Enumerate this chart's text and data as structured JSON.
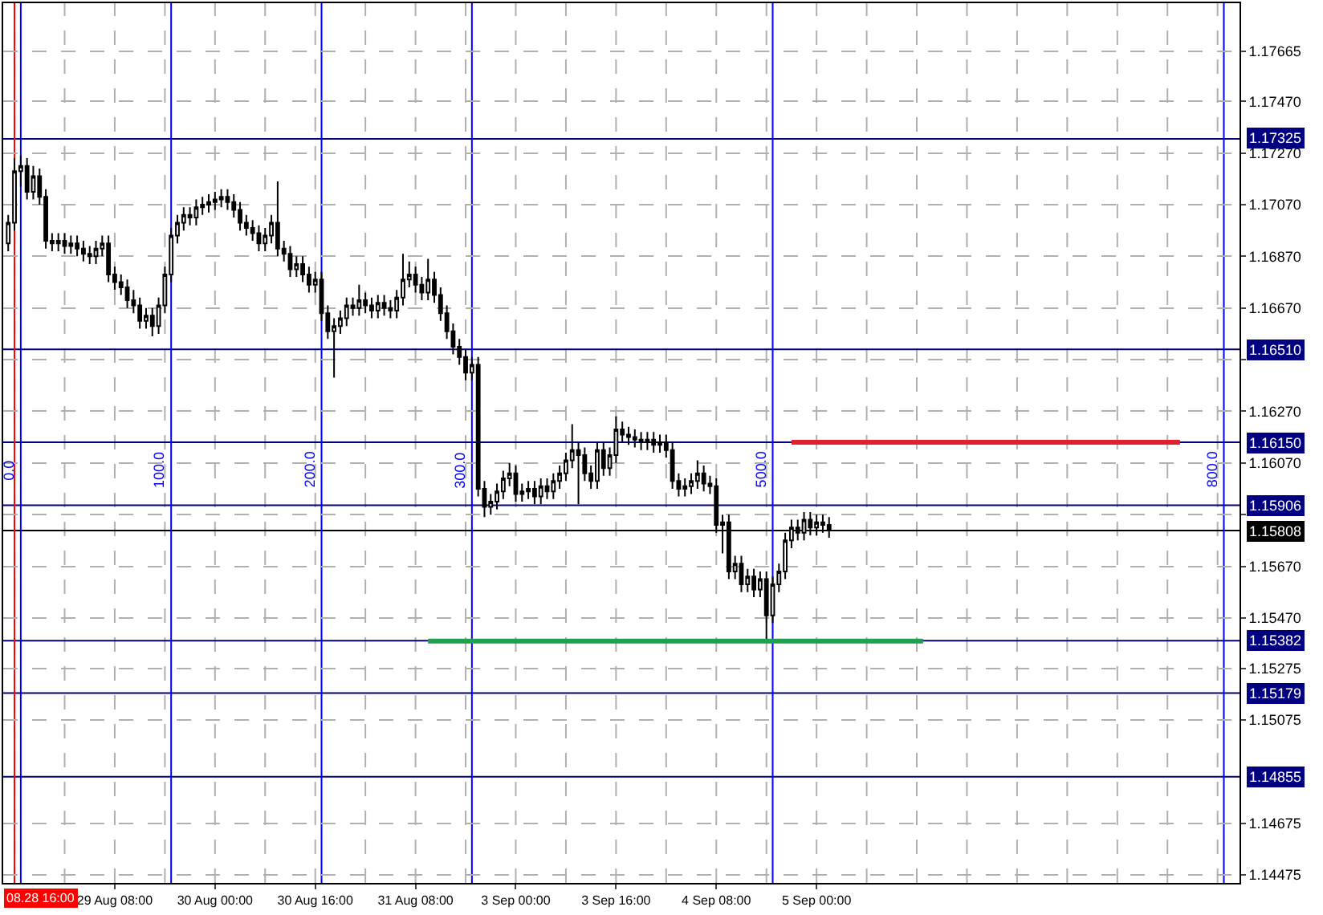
{
  "chart_data": {
    "type": "candlestick",
    "categories": [
      null,
      null,
      null,
      null,
      null,
      null,
      null,
      null,
      null,
      null,
      null,
      null,
      null,
      null,
      null,
      null,
      null,
      "29 Aug 08:00",
      null,
      null,
      null,
      null,
      null,
      null,
      null,
      null,
      null,
      null,
      null,
      null,
      null,
      null,
      null,
      "30 Aug 00:00",
      null,
      null,
      null,
      null,
      null,
      null,
      null,
      null,
      null,
      null,
      null,
      null,
      null,
      null,
      null,
      "30 Aug 16:00",
      null,
      null,
      null,
      null,
      null,
      null,
      null,
      null,
      null,
      null,
      null,
      null,
      null,
      null,
      null,
      "31 Aug 08:00",
      null,
      null,
      null,
      null,
      null,
      null,
      null,
      null,
      null,
      null,
      null,
      null,
      null,
      null,
      null,
      "3 Sep 00:00",
      null,
      null,
      null,
      null,
      null,
      null,
      null,
      null,
      null,
      null,
      null,
      null,
      null,
      null,
      null,
      "3 Sep 16:00",
      null,
      null,
      null,
      null,
      null,
      null,
      null,
      null,
      null,
      null,
      null,
      null,
      null,
      null,
      null,
      "4 Sep 08:00",
      null,
      null,
      null,
      null,
      null,
      null,
      null,
      null,
      null,
      null,
      null,
      null,
      null,
      null,
      null,
      "5 Sep 00:00",
      null,
      null,
      null,
      null,
      null,
      null,
      null,
      null,
      null,
      null,
      null,
      null,
      null,
      null,
      null,
      null,
      null,
      null,
      null,
      null,
      null,
      null,
      null,
      null,
      null,
      null,
      null,
      null,
      null,
      null,
      null,
      null,
      null,
      null,
      null,
      null,
      null,
      null,
      null,
      null,
      null,
      null,
      null,
      null,
      null,
      null,
      null,
      null,
      null,
      null,
      null,
      null,
      null,
      null,
      null,
      null,
      null,
      null,
      null,
      null,
      null,
      null,
      null,
      null,
      null,
      null,
      null
    ],
    "ohlc": [
      [
        1.1692,
        1.1703,
        1.1689,
        1.17
      ],
      [
        1.17,
        1.1725,
        1.1697,
        1.172
      ],
      [
        1.172,
        1.1726,
        1.1714,
        1.1722
      ],
      [
        1.1722,
        1.1725,
        1.1709,
        1.1712
      ],
      [
        1.1712,
        1.1722,
        1.1709,
        1.1718
      ],
      [
        1.1718,
        1.1721,
        1.1707,
        1.171
      ],
      [
        1.171,
        1.1713,
        1.169,
        1.1693
      ],
      [
        1.1693,
        1.1696,
        1.1689,
        1.1692
      ],
      [
        1.1692,
        1.1696,
        1.1689,
        1.1693
      ],
      [
        1.1693,
        1.1696,
        1.1688,
        1.1691
      ],
      [
        1.1691,
        1.1695,
        1.1688,
        1.1692
      ],
      [
        1.1692,
        1.1695,
        1.1687,
        1.169
      ],
      [
        1.169,
        1.1693,
        1.1685,
        1.1688
      ],
      [
        1.1688,
        1.1691,
        1.1684,
        1.1687
      ],
      [
        1.1687,
        1.1693,
        1.1684,
        1.169
      ],
      [
        1.169,
        1.1695,
        1.1687,
        1.1692
      ],
      [
        1.1692,
        1.1695,
        1.1677,
        1.168
      ],
      [
        1.168,
        1.1683,
        1.1674,
        1.1677
      ],
      [
        1.1677,
        1.168,
        1.1672,
        1.1675
      ],
      [
        1.1675,
        1.1678,
        1.1667,
        1.167
      ],
      [
        1.167,
        1.1674,
        1.1665,
        1.1668
      ],
      [
        1.1668,
        1.1671,
        1.1659,
        1.1662
      ],
      [
        1.1662,
        1.1667,
        1.1659,
        1.1664
      ],
      [
        1.1664,
        1.1667,
        1.1656,
        1.166
      ],
      [
        1.166,
        1.1671,
        1.1657,
        1.1668
      ],
      [
        1.1668,
        1.1683,
        1.1665,
        1.168
      ],
      [
        1.168,
        1.1698,
        1.1677,
        1.1695
      ],
      [
        1.1695,
        1.1703,
        1.1692,
        1.17
      ],
      [
        1.17,
        1.1706,
        1.1697,
        1.1703
      ],
      [
        1.1703,
        1.1706,
        1.1699,
        1.1702
      ],
      [
        1.1702,
        1.1709,
        1.1699,
        1.1706
      ],
      [
        1.1706,
        1.171,
        1.1703,
        1.1707
      ],
      [
        1.1707,
        1.1711,
        1.1704,
        1.1708
      ],
      [
        1.1708,
        1.1712,
        1.1705,
        1.1709
      ],
      [
        1.1709,
        1.1713,
        1.1706,
        1.171
      ],
      [
        1.171,
        1.1713,
        1.1705,
        1.1708
      ],
      [
        1.1708,
        1.1711,
        1.1702,
        1.1705
      ],
      [
        1.1705,
        1.1708,
        1.1697,
        1.17
      ],
      [
        1.17,
        1.1703,
        1.1695,
        1.1698
      ],
      [
        1.1698,
        1.1701,
        1.1693,
        1.1696
      ],
      [
        1.1696,
        1.1699,
        1.1689,
        1.1692
      ],
      [
        1.1692,
        1.1698,
        1.1689,
        1.1695
      ],
      [
        1.1695,
        1.1703,
        1.1692,
        1.17
      ],
      [
        1.17,
        1.1716,
        1.1687,
        1.169
      ],
      [
        1.169,
        1.1693,
        1.1685,
        1.1688
      ],
      [
        1.1688,
        1.1691,
        1.1679,
        1.1682
      ],
      [
        1.1682,
        1.1687,
        1.1679,
        1.1684
      ],
      [
        1.1684,
        1.1687,
        1.1677,
        1.168
      ],
      [
        1.168,
        1.1683,
        1.1673,
        1.1676
      ],
      [
        1.1676,
        1.1681,
        1.1673,
        1.1678
      ],
      [
        1.1678,
        1.1681,
        1.1662,
        1.1665
      ],
      [
        1.1665,
        1.1668,
        1.1655,
        1.1658
      ],
      [
        1.1658,
        1.1663,
        1.164,
        1.166
      ],
      [
        1.166,
        1.1666,
        1.1657,
        1.1663
      ],
      [
        1.1663,
        1.1671,
        1.166,
        1.1668
      ],
      [
        1.1668,
        1.1671,
        1.1664,
        1.1667
      ],
      [
        1.1667,
        1.1676,
        1.1664,
        1.167
      ],
      [
        1.167,
        1.1673,
        1.1665,
        1.1668
      ],
      [
        1.1668,
        1.1671,
        1.1663,
        1.1666
      ],
      [
        1.1666,
        1.1672,
        1.1663,
        1.1669
      ],
      [
        1.1669,
        1.1672,
        1.1664,
        1.1667
      ],
      [
        1.1667,
        1.167,
        1.1663,
        1.1666
      ],
      [
        1.1666,
        1.1674,
        1.1663,
        1.1671
      ],
      [
        1.1671,
        1.1688,
        1.1668,
        1.1678
      ],
      [
        1.1678,
        1.1685,
        1.1675,
        1.168
      ],
      [
        1.168,
        1.1683,
        1.1673,
        1.1676
      ],
      [
        1.1676,
        1.1679,
        1.167,
        1.1673
      ],
      [
        1.1673,
        1.1686,
        1.167,
        1.1678
      ],
      [
        1.1678,
        1.1681,
        1.1669,
        1.1672
      ],
      [
        1.1672,
        1.1675,
        1.1662,
        1.1665
      ],
      [
        1.1665,
        1.1668,
        1.1655,
        1.1658
      ],
      [
        1.1658,
        1.1661,
        1.1649,
        1.1652
      ],
      [
        1.1652,
        1.1655,
        1.1645,
        1.1648
      ],
      [
        1.1648,
        1.1651,
        1.1639,
        1.1642
      ],
      [
        1.1642,
        1.1648,
        1.1639,
        1.1645
      ],
      [
        1.1645,
        1.1648,
        1.1594,
        1.1597
      ],
      [
        1.1597,
        1.16,
        1.1586,
        1.159
      ],
      [
        1.159,
        1.1595,
        1.1587,
        1.1592
      ],
      [
        1.1592,
        1.1599,
        1.1589,
        1.1596
      ],
      [
        1.1596,
        1.1604,
        1.1593,
        1.1601
      ],
      [
        1.1601,
        1.1607,
        1.1598,
        1.1603
      ],
      [
        1.1603,
        1.1606,
        1.1592,
        1.1595
      ],
      [
        1.1595,
        1.1599,
        1.1592,
        1.1596
      ],
      [
        1.1596,
        1.16,
        1.1593,
        1.1597
      ],
      [
        1.1597,
        1.16,
        1.1591,
        1.1594
      ],
      [
        1.1594,
        1.1601,
        1.1591,
        1.1598
      ],
      [
        1.1598,
        1.1601,
        1.1593,
        1.1596
      ],
      [
        1.1596,
        1.1603,
        1.1593,
        1.16
      ],
      [
        1.16,
        1.1606,
        1.1597,
        1.1603
      ],
      [
        1.1603,
        1.1611,
        1.16,
        1.1608
      ],
      [
        1.1608,
        1.1622,
        1.1605,
        1.1612
      ],
      [
        1.1612,
        1.1615,
        1.1591,
        1.161
      ],
      [
        1.161,
        1.1613,
        1.16,
        1.1603
      ],
      [
        1.1603,
        1.1606,
        1.1597,
        1.16
      ],
      [
        1.16,
        1.1615,
        1.1597,
        1.1612
      ],
      [
        1.1612,
        1.1615,
        1.1602,
        1.1605
      ],
      [
        1.1605,
        1.1613,
        1.1602,
        1.161
      ],
      [
        1.161,
        1.1625,
        1.1607,
        1.162
      ],
      [
        1.162,
        1.1623,
        1.1615,
        1.1618
      ],
      [
        1.1618,
        1.1621,
        1.1614,
        1.1617
      ],
      [
        1.1617,
        1.162,
        1.1613,
        1.1616
      ],
      [
        1.1616,
        1.1619,
        1.1612,
        1.1615
      ],
      [
        1.1615,
        1.1619,
        1.1612,
        1.1616
      ],
      [
        1.1616,
        1.1619,
        1.1611,
        1.1614
      ],
      [
        1.1614,
        1.1618,
        1.1611,
        1.1615
      ],
      [
        1.1615,
        1.1618,
        1.1609,
        1.1612
      ],
      [
        1.1612,
        1.1615,
        1.1597,
        1.16
      ],
      [
        1.16,
        1.1603,
        1.1594,
        1.1597
      ],
      [
        1.1597,
        1.1601,
        1.1594,
        1.1598
      ],
      [
        1.1598,
        1.1603,
        1.1595,
        1.16
      ],
      [
        1.16,
        1.1608,
        1.1597,
        1.1603
      ],
      [
        1.1603,
        1.1606,
        1.1596,
        1.1599
      ],
      [
        1.1599,
        1.1602,
        1.1595,
        1.1598
      ],
      [
        1.1598,
        1.1601,
        1.158,
        1.1583
      ],
      [
        1.1583,
        1.1587,
        1.1572,
        1.1584
      ],
      [
        1.1584,
        1.1587,
        1.1562,
        1.1565
      ],
      [
        1.1565,
        1.1571,
        1.1562,
        1.1568
      ],
      [
        1.1568,
        1.1571,
        1.1557,
        1.156
      ],
      [
        1.156,
        1.1566,
        1.1557,
        1.1563
      ],
      [
        1.1563,
        1.1566,
        1.1555,
        1.1558
      ],
      [
        1.1558,
        1.1565,
        1.1555,
        1.1562
      ],
      [
        1.1562,
        1.1565,
        1.1538,
        1.1548
      ],
      [
        1.1548,
        1.1563,
        1.1545,
        1.156
      ],
      [
        1.156,
        1.1568,
        1.1557,
        1.1565
      ],
      [
        1.1565,
        1.158,
        1.1562,
        1.1577
      ],
      [
        1.1577,
        1.1585,
        1.1574,
        1.1582
      ],
      [
        1.1582,
        1.1585,
        1.1577,
        1.158
      ],
      [
        1.158,
        1.1588,
        1.1577,
        1.1585
      ],
      [
        1.1585,
        1.1588,
        1.1579,
        1.1582
      ],
      [
        1.1582,
        1.1587,
        1.1579,
        1.1584
      ],
      [
        1.1584,
        1.1587,
        1.158,
        1.1583
      ],
      [
        1.1583,
        1.1586,
        1.1578,
        1.1581
      ],
      null,
      null,
      null,
      null,
      null,
      null,
      null,
      null,
      null,
      null,
      null,
      null,
      null,
      null,
      null,
      null,
      null,
      null,
      null,
      null,
      null,
      null,
      null,
      null,
      null,
      null,
      null,
      null,
      null,
      null,
      null,
      null,
      null,
      null,
      null,
      null,
      null,
      null,
      null,
      null,
      null,
      null,
      null,
      null,
      null,
      null,
      null,
      null,
      null,
      null,
      null,
      null,
      null,
      null,
      null,
      null,
      null,
      null,
      null,
      null,
      null,
      null,
      null,
      null,
      null
    ],
    "series": [
      {
        "type": "line",
        "values": [
          null,
          null,
          null,
          null,
          null,
          null,
          null,
          null,
          null,
          null,
          null,
          null,
          null,
          null,
          null,
          null,
          null,
          null,
          null,
          null,
          null,
          null,
          null,
          null,
          null,
          null,
          null,
          null,
          null,
          null,
          null,
          null,
          null,
          null,
          null,
          null,
          null,
          null,
          null,
          null,
          null,
          null,
          null,
          null,
          null,
          null,
          null,
          null,
          null,
          null,
          null,
          null,
          null,
          null,
          null,
          null,
          null,
          null,
          null,
          null,
          null,
          null,
          null,
          null,
          null,
          null,
          null,
          null,
          null,
          null,
          null,
          null,
          null,
          null,
          null,
          null,
          null,
          null,
          null,
          null,
          null,
          null,
          null,
          null,
          null,
          null,
          null,
          null,
          null,
          null,
          null,
          null,
          null,
          null,
          null,
          null,
          null,
          null,
          null,
          null,
          null,
          null,
          null,
          null,
          null,
          null,
          null,
          null,
          null,
          null,
          null,
          null,
          null,
          null,
          null,
          null,
          null,
          null,
          null,
          null,
          null,
          null,
          null,
          null,
          null,
          1.1615,
          1.1615,
          1.1615,
          1.1615,
          1.1615,
          1.1615,
          1.1615,
          1.1615,
          1.1615,
          1.1615,
          1.1615,
          1.1615,
          1.1615,
          1.1615,
          1.1615,
          1.1615,
          1.1615,
          1.1615,
          1.1615,
          1.1615,
          1.1615,
          1.1615,
          1.1615,
          1.1615,
          1.1615,
          1.1615,
          1.1615,
          1.1615,
          1.1615,
          1.1615,
          1.1615,
          1.1615,
          1.1615,
          1.1615,
          1.1615,
          1.1615,
          1.1615,
          1.1615,
          1.1615,
          1.1615,
          1.1615,
          1.1615,
          1.1615,
          1.1615,
          1.1615,
          1.1615,
          1.1615,
          1.1615,
          1.1615,
          1.1615,
          1.1615,
          1.1615,
          1.1615,
          1.1615,
          1.1615,
          1.1615,
          1.1615,
          1.1615,
          1.1615,
          1.1615,
          1.1615,
          1.1615,
          1.1615,
          null,
          null,
          null,
          null,
          null,
          null,
          null,
          null,
          null
        ],
        "color": "#e0202f"
      },
      {
        "type": "line",
        "values": [
          null,
          null,
          null,
          null,
          null,
          null,
          null,
          null,
          null,
          null,
          null,
          null,
          null,
          null,
          null,
          null,
          null,
          null,
          null,
          null,
          null,
          null,
          null,
          null,
          null,
          null,
          null,
          null,
          null,
          null,
          null,
          null,
          null,
          null,
          null,
          null,
          null,
          null,
          null,
          null,
          null,
          null,
          null,
          null,
          null,
          null,
          null,
          null,
          null,
          null,
          null,
          null,
          null,
          null,
          null,
          null,
          null,
          null,
          null,
          null,
          null,
          null,
          null,
          null,
          null,
          null,
          null,
          1.1538,
          1.1538,
          1.1538,
          1.1538,
          1.1538,
          1.1538,
          1.1538,
          1.1538,
          1.1538,
          1.1538,
          1.1538,
          1.1538,
          1.1538,
          1.1538,
          1.1538,
          1.1538,
          1.1538,
          1.1538,
          1.1538,
          1.1538,
          1.1538,
          1.1538,
          1.1538,
          1.1538,
          1.1538,
          1.1538,
          1.1538,
          1.1538,
          1.1538,
          1.1538,
          1.1538,
          1.1538,
          1.1538,
          1.1538,
          1.1538,
          1.1538,
          1.1538,
          1.1538,
          1.1538,
          1.1538,
          1.1538,
          1.1538,
          1.1538,
          1.1538,
          1.1538,
          1.1538,
          1.1538,
          1.1538,
          1.1538,
          1.1538,
          1.1538,
          1.1538,
          1.1538,
          1.1538,
          1.1538,
          1.1538,
          1.1538,
          1.1538,
          1.1538,
          1.1538,
          1.1538,
          1.1538,
          1.1538,
          1.1538,
          1.1538,
          1.1538,
          1.1538,
          1.1538,
          1.1538,
          1.1538,
          1.1538,
          1.1538,
          1.1538,
          1.1538,
          1.1538,
          1.1538,
          1.1538,
          1.1538,
          1.1538,
          1.1538,
          null,
          null,
          null,
          null,
          null,
          null,
          null,
          null,
          null,
          null,
          null,
          null,
          null,
          null,
          null,
          null,
          null,
          null,
          null,
          null,
          null,
          null,
          null,
          null,
          null,
          null,
          null,
          null,
          null,
          null,
          null,
          null,
          null,
          null,
          null,
          null,
          null,
          null,
          null,
          null,
          null,
          null,
          null,
          null,
          null,
          null,
          null,
          null,
          null,
          null
        ],
        "color": "#20a050"
      }
    ],
    "annotations": [
      "08.28 16:00",
      "0.0",
      "100.0",
      "200.0",
      "300.0",
      "500.0",
      "800.0"
    ],
    "ylim": [
      1.14444,
      1.1785
    ],
    "yticks": [
      1.17665,
      {
        "value": 1.1747,
        "label": "1.17470"
      },
      {
        "value": 1.1727,
        "label": "1.17270"
      },
      {
        "value": 1.1707,
        "label": "1.17070"
      },
      {
        "value": 1.1687,
        "label": "1.16870"
      },
      {
        "value": 1.1667,
        "label": "1.16670"
      },
      {
        "value": 1.1647,
        "label": null
      },
      {
        "value": 1.1627,
        "label": "1.16270"
      },
      {
        "value": 1.1607,
        "label": "1.16070"
      },
      {
        "value": 1.1587,
        "label": null
      },
      {
        "value": 1.1567,
        "label": "1.15670"
      },
      {
        "value": 1.1547,
        "label": "1.15470"
      },
      1.15275,
      1.15075,
      1.14675,
      1.14475
    ],
    "ref_lines": [
      {
        "axis": "y",
        "value": 1.17325,
        "label": "1.17325",
        "color": "#000080"
      },
      {
        "axis": "y",
        "value": 1.1651,
        "label": "1.16510",
        "color": "#000080"
      },
      {
        "axis": "y",
        "value": 1.1615,
        "label": "1.16150",
        "color": "#000080"
      },
      {
        "axis": "y",
        "value": 1.15906,
        "label": "1.15906",
        "color": "#000080"
      },
      {
        "axis": "y",
        "value": 1.15808,
        "label": "1.15808",
        "color": "#000000"
      },
      {
        "axis": "y",
        "value": 1.15382,
        "label": "1.15382",
        "color": "#000080"
      },
      {
        "axis": "y",
        "value": 1.15179,
        "label": "1.15179",
        "color": "#000080"
      },
      {
        "axis": "y",
        "value": 1.14855,
        "label": "1.14855",
        "color": "#000080"
      }
    ],
    "grid": true
  }
}
